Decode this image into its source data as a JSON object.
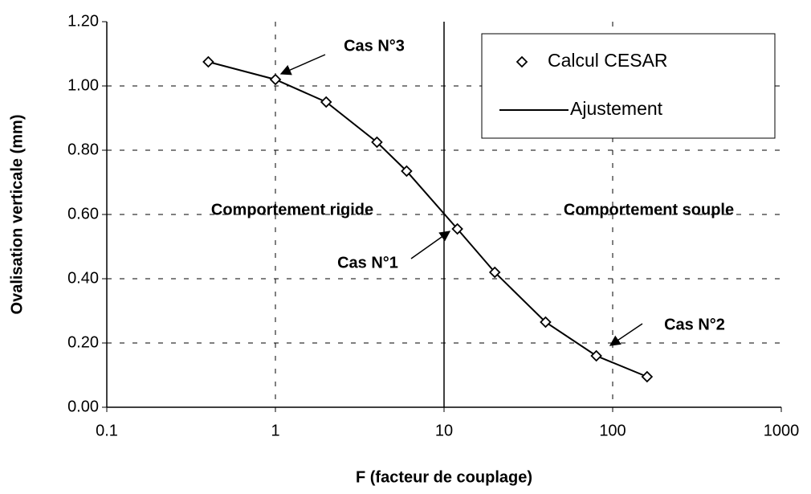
{
  "chart_data": {
    "type": "line",
    "x_label": "F (facteur de couplage)",
    "y_label": "Ovalisation verticale (mm)",
    "x": [
      0.4,
      1,
      2,
      4,
      6,
      12,
      20,
      40,
      80,
      160
    ],
    "series": [
      {
        "name": "Calcul CESAR",
        "color": "#000000",
        "marker": "diamond",
        "values": [
          1.075,
          1.02,
          0.95,
          0.825,
          0.735,
          0.555,
          0.42,
          0.265,
          0.16,
          0.095
        ]
      },
      {
        "name": "Ajustement",
        "color": "#000000",
        "marker": "none",
        "values": [
          1.075,
          1.02,
          0.95,
          0.825,
          0.735,
          0.555,
          0.42,
          0.265,
          0.16,
          0.095
        ]
      }
    ],
    "vline": 10,
    "xlim": [
      0.1,
      1000
    ],
    "xticks": [
      0.1,
      1,
      10,
      100,
      1000
    ],
    "xscale": "log",
    "ylim": [
      0,
      1.2
    ],
    "yticks": [
      {
        "value": 0,
        "label": "0.00"
      },
      {
        "value": 0.2,
        "label": "0.20"
      },
      {
        "value": 0.4,
        "label": "0.40"
      },
      {
        "value": 0.6,
        "label": "0.60"
      },
      {
        "value": 0.8,
        "label": "0.80"
      },
      {
        "value": 1,
        "label": "1.00"
      },
      {
        "value": 1.2,
        "label": "1.20"
      }
    ],
    "grid": true,
    "legend": "upper right",
    "annotations": [
      "Cas N°3",
      "Cas N°1",
      "Cas N°2",
      "Comportement  rigide",
      "Comportement  souple"
    ]
  }
}
